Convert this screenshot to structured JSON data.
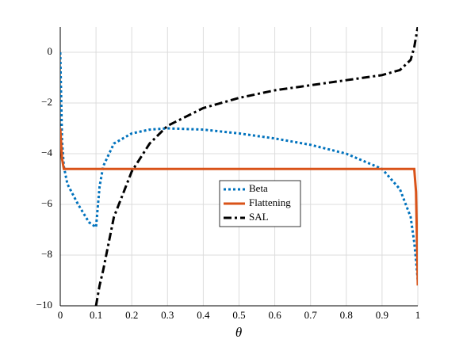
{
  "chart_data": {
    "type": "line",
    "x_label": "θ",
    "x": [
      0,
      0.005,
      0.01,
      0.02,
      0.05,
      0.08,
      0.1,
      0.11,
      0.12,
      0.15,
      0.2,
      0.25,
      0.3,
      0.4,
      0.5,
      0.6,
      0.7,
      0.8,
      0.9,
      0.95,
      0.98,
      0.99,
      0.995,
      1.0
    ],
    "series": [
      {
        "name": "Beta",
        "color": "#0072bd",
        "dash": "dotted",
        "values": [
          0,
          -3.5,
          -4.5,
          -5.2,
          -6.0,
          -6.7,
          -6.9,
          -5.3,
          -4.5,
          -3.6,
          -3.2,
          -3.05,
          -3.0,
          -3.05,
          -3.2,
          -3.4,
          -3.65,
          -4.0,
          -4.6,
          -5.4,
          -6.5,
          -7.5,
          -8.2,
          -9.0
        ]
      },
      {
        "name": "Flattening",
        "color": "#d95319",
        "dash": "solid",
        "values": [
          -3.0,
          -4.2,
          -4.6,
          -4.6,
          -4.6,
          -4.6,
          -4.6,
          -4.6,
          -4.6,
          -4.6,
          -4.6,
          -4.6,
          -4.6,
          -4.6,
          -4.6,
          -4.6,
          -4.6,
          -4.6,
          -4.6,
          -4.6,
          -4.6,
          -4.6,
          -5.5,
          -9.2
        ]
      },
      {
        "name": "SAL",
        "color": "#000000",
        "dash": "dashdot",
        "values": [
          null,
          null,
          null,
          null,
          null,
          null,
          -10,
          -9.2,
          -8.6,
          -6.5,
          -4.7,
          -3.6,
          -2.9,
          -2.2,
          -1.8,
          -1.5,
          -1.3,
          -1.1,
          -0.9,
          -0.7,
          -0.3,
          0.2,
          0.6,
          1.0
        ]
      }
    ],
    "xlim": [
      0,
      1
    ],
    "ylim": [
      -10,
      1
    ],
    "xticks": [
      0,
      0.1,
      0.2,
      0.3,
      0.4,
      0.5,
      0.6,
      0.7,
      0.8,
      0.9,
      1
    ],
    "yticks": [
      {
        "value": -10,
        "label": "−10"
      },
      {
        "value": -8,
        "label": "−8"
      },
      {
        "value": -6,
        "label": "−6"
      },
      {
        "value": -4,
        "label": "−4"
      },
      {
        "value": -2,
        "label": "−2"
      },
      0
    ],
    "grid": true,
    "legend": "center"
  }
}
